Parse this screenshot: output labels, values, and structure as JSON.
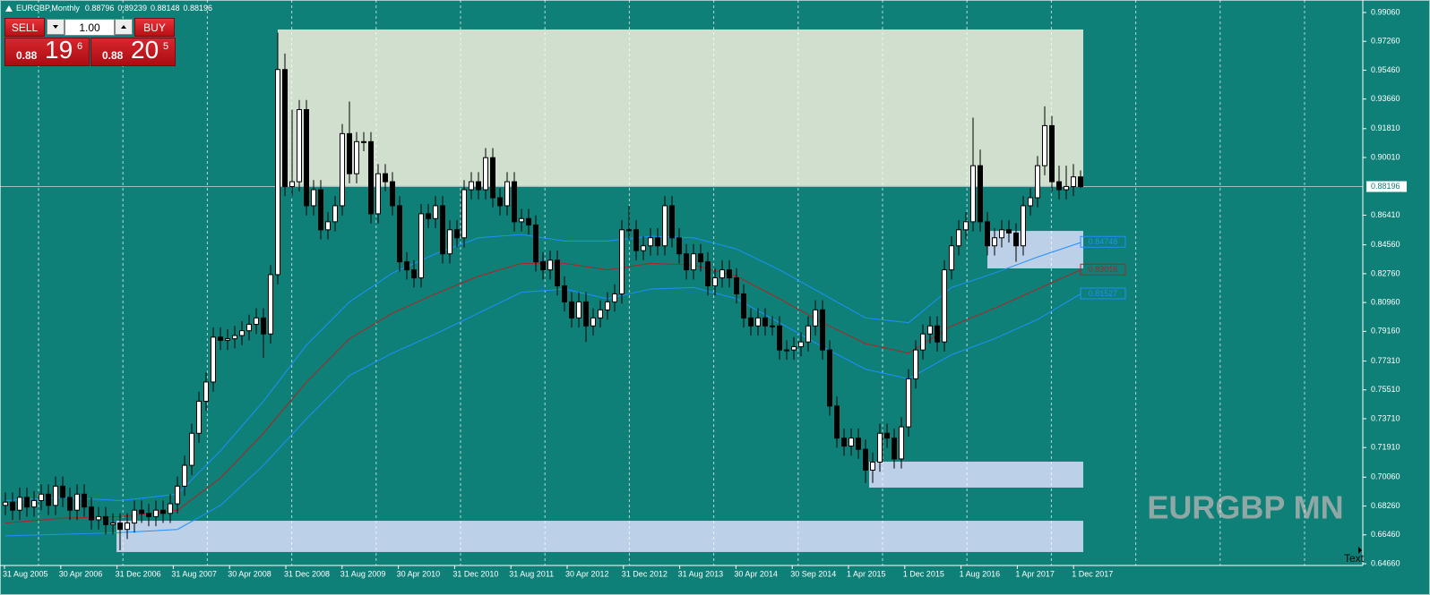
{
  "header": {
    "symbol": "EURGBP,Monthly",
    "ohlc": [
      0.88796,
      0.89239,
      0.88148,
      0.88196
    ]
  },
  "trade_panel": {
    "sell": "SELL",
    "buy": "BUY",
    "lots": "1.00",
    "sell_price": {
      "big": 0.88,
      "pips": 19,
      "point": 6
    },
    "buy_price": {
      "big": 0.88,
      "pips": 20,
      "point": 5
    }
  },
  "watermark": "EURGBP MN",
  "corner_text": "Text",
  "chart_data": {
    "type": "candlestick",
    "background": "#0e8077",
    "bull_color": "#ffffff",
    "bear_color": "#000000",
    "ylim": [
      0.6455,
      0.9984
    ],
    "yticks": [
      {
        "value": 0.9906,
        "label": "0.99060"
      },
      {
        "value": 0.9726,
        "label": "0.97260"
      },
      {
        "value": 0.9546,
        "label": "0.95460"
      },
      {
        "value": 0.9366,
        "label": "0.93660"
      },
      {
        "value": 0.9181,
        "label": "0.91810"
      },
      {
        "value": 0.9001,
        "label": "0.90010"
      },
      {
        "value": 0.8641,
        "label": "0.86410"
      },
      {
        "value": 0.8456,
        "label": "0.84560"
      },
      {
        "value": 0.8276,
        "label": "0.82760"
      },
      {
        "value": 0.8096,
        "label": "0.80960"
      },
      {
        "value": 0.7916,
        "label": "0.79160"
      },
      {
        "value": 0.7731,
        "label": "0.77310"
      },
      {
        "value": 0.7551,
        "label": "0.75510"
      },
      {
        "value": 0.7371,
        "label": "0.73710"
      },
      {
        "value": 0.7191,
        "label": "0.71910"
      },
      {
        "value": 0.7006,
        "label": "0.70060"
      },
      {
        "value": 0.6826,
        "label": "0.68260"
      },
      {
        "value": 0.6646,
        "label": "0.66460"
      },
      {
        "value": 0.6466,
        "label": "0.64660"
      }
    ],
    "current_price": 0.88196,
    "x_labels": [
      "31 Aug 2005",
      "30 Apr 2006",
      "31 Dec 2006",
      "31 Aug 2007",
      "30 Apr 2008",
      "31 Dec 2008",
      "31 Aug 2009",
      "30 Apr 2010",
      "31 Dec 2010",
      "31 Aug 2011",
      "30 Apr 2012",
      "31 Dec 2012",
      "31 Aug 2013",
      "30 Apr 2014",
      "30 Sep 2014",
      "1 Apr 2015",
      "1 Dec 2015",
      "1 Aug 2016",
      "1 Apr 2017",
      "1 Dec 2017"
    ],
    "open": [
      0.683,
      0.685,
      0.68,
      0.688,
      0.682,
      0.686,
      0.69,
      0.683,
      0.695,
      0.688,
      0.68,
      0.69,
      0.682,
      0.674,
      0.676,
      0.671,
      0.672,
      0.668,
      0.672,
      0.68,
      0.678,
      0.676,
      0.68,
      0.678,
      0.684,
      0.695,
      0.708,
      0.728,
      0.748,
      0.76,
      0.788,
      0.786,
      0.787,
      0.789,
      0.792,
      0.796,
      0.8,
      0.79,
      0.827,
      0.955,
      0.882,
      0.885,
      0.93,
      0.87,
      0.88,
      0.855,
      0.86,
      0.87,
      0.915,
      0.89,
      0.91,
      0.91,
      0.865,
      0.89,
      0.885,
      0.87,
      0.835,
      0.83,
      0.825,
      0.865,
      0.862,
      0.87,
      0.84,
      0.855,
      0.85,
      0.88,
      0.885,
      0.88,
      0.9,
      0.875,
      0.87,
      0.885,
      0.86,
      0.862,
      0.858,
      0.835,
      0.83,
      0.836,
      0.82,
      0.81,
      0.8,
      0.81,
      0.795,
      0.8,
      0.805,
      0.81,
      0.815,
      0.855,
      0.855,
      0.842,
      0.845,
      0.85,
      0.845,
      0.87,
      0.85,
      0.84,
      0.83,
      0.84,
      0.835,
      0.82,
      0.825,
      0.83,
      0.825,
      0.815,
      0.8,
      0.795,
      0.8,
      0.795,
      0.795,
      0.78,
      0.78,
      0.782,
      0.785,
      0.795,
      0.805,
      0.78,
      0.745,
      0.725,
      0.72,
      0.725,
      0.718,
      0.705,
      0.71,
      0.728,
      0.725,
      0.712,
      0.732,
      0.762,
      0.78,
      0.79,
      0.795,
      0.785,
      0.83,
      0.845,
      0.855,
      0.86,
      0.895,
      0.86,
      0.845,
      0.85,
      0.855,
      0.853,
      0.845,
      0.87,
      0.875,
      0.895,
      0.92,
      0.885,
      0.88,
      0.882,
      0.888
    ],
    "high": [
      0.691,
      0.691,
      0.694,
      0.694,
      0.692,
      0.696,
      0.696,
      0.701,
      0.701,
      0.694,
      0.696,
      0.696,
      0.688,
      0.682,
      0.682,
      0.678,
      0.678,
      0.678,
      0.686,
      0.686,
      0.684,
      0.686,
      0.686,
      0.69,
      0.701,
      0.714,
      0.734,
      0.754,
      0.766,
      0.794,
      0.794,
      0.793,
      0.795,
      0.798,
      0.802,
      0.806,
      0.806,
      0.833,
      0.978,
      0.965,
      0.93,
      0.936,
      0.936,
      0.886,
      0.886,
      0.866,
      0.876,
      0.921,
      0.935,
      0.916,
      0.916,
      0.916,
      0.896,
      0.896,
      0.891,
      0.876,
      0.841,
      0.836,
      0.871,
      0.871,
      0.876,
      0.876,
      0.861,
      0.861,
      0.886,
      0.891,
      0.891,
      0.906,
      0.906,
      0.881,
      0.891,
      0.891,
      0.868,
      0.868,
      0.864,
      0.841,
      0.842,
      0.842,
      0.826,
      0.816,
      0.816,
      0.816,
      0.806,
      0.811,
      0.816,
      0.821,
      0.861,
      0.87,
      0.861,
      0.851,
      0.856,
      0.856,
      0.876,
      0.876,
      0.856,
      0.846,
      0.846,
      0.846,
      0.841,
      0.831,
      0.836,
      0.836,
      0.831,
      0.821,
      0.806,
      0.806,
      0.806,
      0.801,
      0.801,
      0.786,
      0.788,
      0.791,
      0.801,
      0.811,
      0.811,
      0.786,
      0.751,
      0.731,
      0.731,
      0.731,
      0.724,
      0.716,
      0.734,
      0.734,
      0.731,
      0.738,
      0.768,
      0.786,
      0.796,
      0.801,
      0.801,
      0.836,
      0.851,
      0.861,
      0.866,
      0.925,
      0.905,
      0.866,
      0.856,
      0.861,
      0.861,
      0.859,
      0.876,
      0.881,
      0.901,
      0.932,
      0.926,
      0.895,
      0.895,
      0.896,
      0.892
    ],
    "low": [
      0.677,
      0.674,
      0.674,
      0.676,
      0.676,
      0.68,
      0.677,
      0.677,
      0.682,
      0.674,
      0.674,
      0.676,
      0.668,
      0.668,
      0.665,
      0.665,
      0.655,
      0.662,
      0.666,
      0.672,
      0.67,
      0.67,
      0.672,
      0.672,
      0.678,
      0.689,
      0.702,
      0.722,
      0.742,
      0.754,
      0.78,
      0.78,
      0.781,
      0.783,
      0.786,
      0.79,
      0.775,
      0.784,
      0.821,
      0.876,
      0.876,
      0.879,
      0.864,
      0.864,
      0.849,
      0.849,
      0.854,
      0.864,
      0.884,
      0.884,
      0.904,
      0.859,
      0.859,
      0.879,
      0.864,
      0.829,
      0.824,
      0.819,
      0.819,
      0.856,
      0.856,
      0.834,
      0.834,
      0.844,
      0.844,
      0.874,
      0.874,
      0.874,
      0.869,
      0.864,
      0.864,
      0.854,
      0.854,
      0.852,
      0.829,
      0.824,
      0.824,
      0.814,
      0.804,
      0.794,
      0.794,
      0.785,
      0.789,
      0.794,
      0.799,
      0.804,
      0.809,
      0.849,
      0.836,
      0.836,
      0.839,
      0.839,
      0.839,
      0.844,
      0.834,
      0.824,
      0.824,
      0.829,
      0.814,
      0.814,
      0.819,
      0.819,
      0.809,
      0.794,
      0.789,
      0.789,
      0.789,
      0.789,
      0.774,
      0.774,
      0.774,
      0.776,
      0.779,
      0.789,
      0.774,
      0.739,
      0.719,
      0.714,
      0.714,
      0.712,
      0.697,
      0.697,
      0.704,
      0.719,
      0.706,
      0.706,
      0.726,
      0.756,
      0.774,
      0.784,
      0.779,
      0.779,
      0.824,
      0.839,
      0.849,
      0.854,
      0.854,
      0.839,
      0.839,
      0.844,
      0.847,
      0.835,
      0.839,
      0.864,
      0.869,
      0.889,
      0.879,
      0.874,
      0.874,
      0.876,
      0.881
    ],
    "close": [
      0.685,
      0.68,
      0.688,
      0.682,
      0.686,
      0.69,
      0.683,
      0.695,
      0.688,
      0.68,
      0.69,
      0.682,
      0.674,
      0.676,
      0.671,
      0.672,
      0.668,
      0.672,
      0.68,
      0.678,
      0.676,
      0.68,
      0.678,
      0.684,
      0.695,
      0.708,
      0.728,
      0.748,
      0.76,
      0.788,
      0.786,
      0.787,
      0.789,
      0.792,
      0.796,
      0.8,
      0.79,
      0.827,
      0.955,
      0.882,
      0.885,
      0.93,
      0.87,
      0.88,
      0.855,
      0.86,
      0.87,
      0.915,
      0.89,
      0.91,
      0.91,
      0.865,
      0.89,
      0.885,
      0.87,
      0.835,
      0.83,
      0.825,
      0.865,
      0.862,
      0.87,
      0.84,
      0.855,
      0.85,
      0.88,
      0.885,
      0.88,
      0.9,
      0.875,
      0.87,
      0.885,
      0.86,
      0.862,
      0.858,
      0.835,
      0.83,
      0.836,
      0.82,
      0.81,
      0.8,
      0.81,
      0.795,
      0.8,
      0.805,
      0.81,
      0.815,
      0.855,
      0.855,
      0.842,
      0.845,
      0.85,
      0.845,
      0.87,
      0.85,
      0.84,
      0.83,
      0.84,
      0.835,
      0.82,
      0.825,
      0.83,
      0.825,
      0.815,
      0.8,
      0.795,
      0.8,
      0.795,
      0.795,
      0.78,
      0.78,
      0.782,
      0.785,
      0.795,
      0.805,
      0.78,
      0.745,
      0.725,
      0.72,
      0.725,
      0.718,
      0.705,
      0.71,
      0.728,
      0.725,
      0.712,
      0.732,
      0.762,
      0.78,
      0.79,
      0.795,
      0.785,
      0.83,
      0.845,
      0.855,
      0.86,
      0.895,
      0.86,
      0.845,
      0.85,
      0.855,
      0.853,
      0.845,
      0.87,
      0.875,
      0.895,
      0.92,
      0.885,
      0.88,
      0.882,
      0.888,
      0.882
    ],
    "indicators": [
      {
        "color": "#1e90ff",
        "last_label": 0.84748,
        "x": [
          0,
          8,
          16,
          24,
          30,
          36,
          42,
          48,
          54,
          60,
          66,
          72,
          78,
          84,
          90,
          96,
          102,
          108,
          114,
          120,
          126,
          132,
          138,
          144,
          150
        ],
        "values": [
          0.686,
          0.688,
          0.686,
          0.69,
          0.717,
          0.748,
          0.783,
          0.81,
          0.828,
          0.84,
          0.85,
          0.852,
          0.848,
          0.848,
          0.851,
          0.85,
          0.843,
          0.83,
          0.815,
          0.8,
          0.797,
          0.819,
          0.828,
          0.838,
          0.847
        ]
      },
      {
        "color": "#b22222",
        "last_label": 0.83016,
        "x": [
          0,
          8,
          16,
          24,
          30,
          36,
          42,
          48,
          54,
          60,
          66,
          72,
          78,
          84,
          90,
          96,
          102,
          108,
          114,
          120,
          126,
          132,
          138,
          144,
          150
        ],
        "values": [
          0.672,
          0.675,
          0.676,
          0.68,
          0.7,
          0.728,
          0.76,
          0.787,
          0.803,
          0.815,
          0.826,
          0.834,
          0.834,
          0.83,
          0.834,
          0.833,
          0.826,
          0.812,
          0.797,
          0.784,
          0.778,
          0.795,
          0.806,
          0.818,
          0.83
        ]
      },
      {
        "color": "#1e90ff",
        "last_label": 0.81527,
        "x": [
          0,
          8,
          16,
          24,
          30,
          36,
          42,
          48,
          54,
          60,
          66,
          72,
          78,
          84,
          90,
          96,
          102,
          108,
          114,
          120,
          126,
          132,
          138,
          144,
          150
        ],
        "values": [
          0.664,
          0.665,
          0.666,
          0.668,
          0.683,
          0.708,
          0.737,
          0.764,
          0.778,
          0.79,
          0.803,
          0.816,
          0.818,
          0.812,
          0.818,
          0.819,
          0.812,
          0.797,
          0.782,
          0.768,
          0.762,
          0.777,
          0.787,
          0.799,
          0.815
        ]
      }
    ],
    "zones": [
      {
        "color": "#d1dfcf",
        "x": [
          38,
          150
        ],
        "y": [
          0.8823,
          0.98
        ]
      },
      {
        "color": "#bcd1e8",
        "x": [
          15.5,
          150
        ],
        "y": [
          0.6539,
          0.6734
        ]
      },
      {
        "color": "#bcd1e8",
        "x": [
          120.5,
          150
        ],
        "y": [
          0.6941,
          0.7103
        ]
      },
      {
        "color": "#bcd1e8",
        "x": [
          137,
          150
        ],
        "y": [
          0.8309,
          0.8543
        ]
      }
    ]
  }
}
